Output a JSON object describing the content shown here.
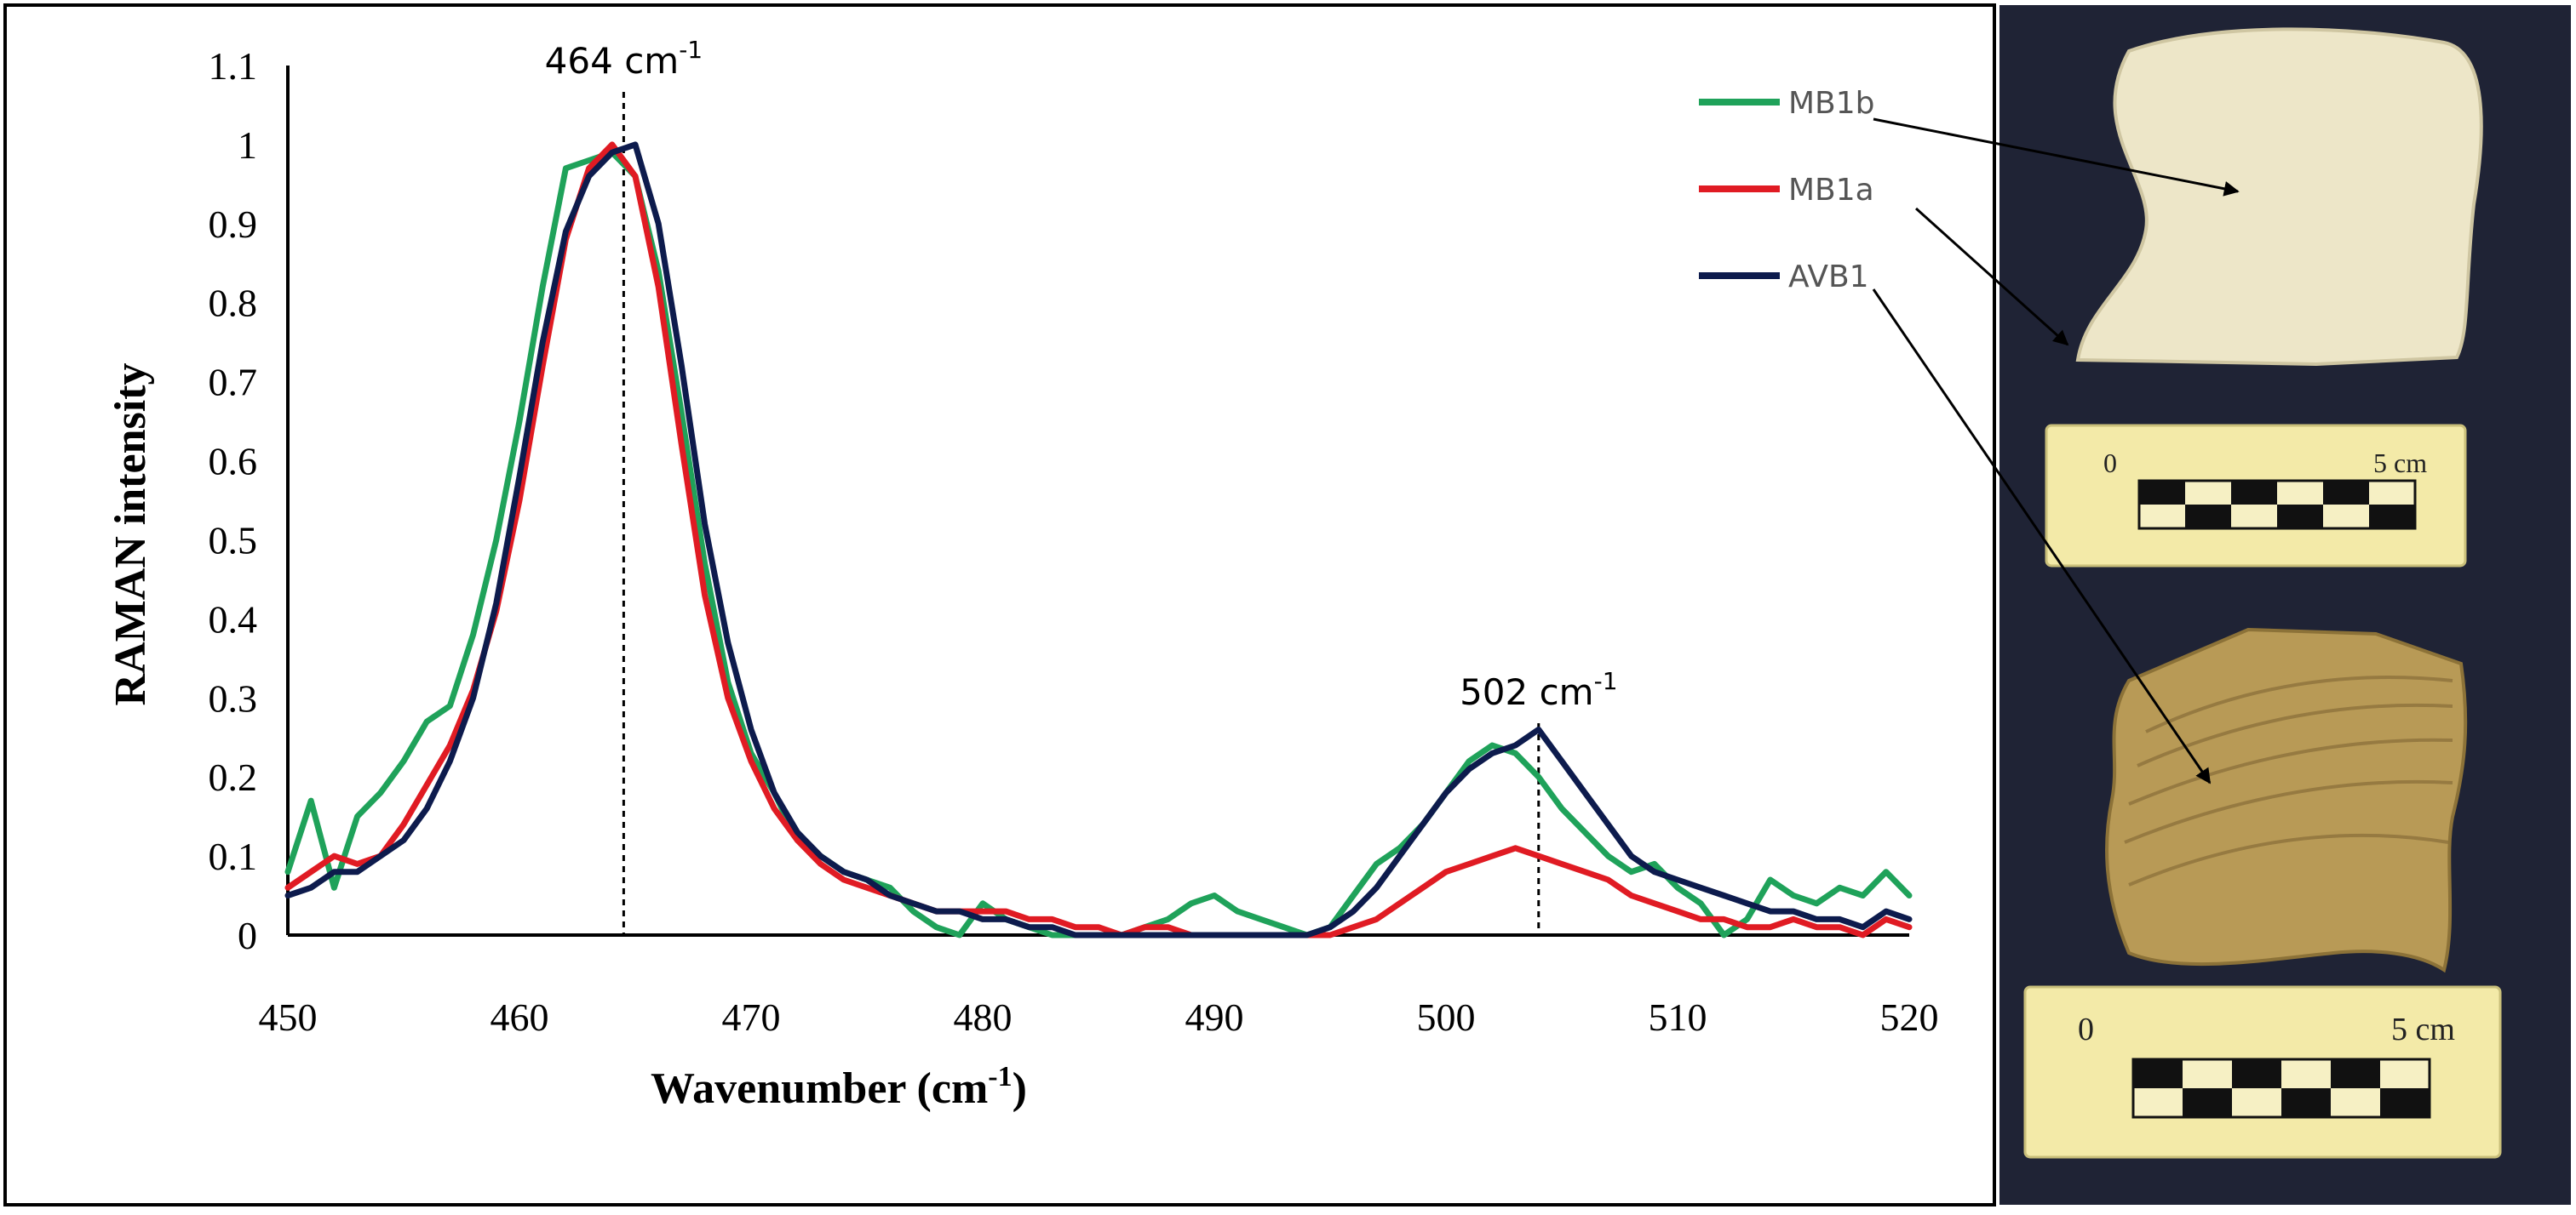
{
  "chart_data": {
    "type": "line",
    "title": "",
    "xlabel": "Wavenumber (cm",
    "xlabel_sup": "-1",
    "xlabel_close": ")",
    "ylabel": "RAMAN  intensity",
    "xlim": [
      450,
      520
    ],
    "ylim": [
      0,
      1.1
    ],
    "xticks": [
      450,
      460,
      470,
      480,
      490,
      500,
      510,
      520
    ],
    "xtick_labels": [
      "450",
      "460",
      "470",
      "480",
      "490",
      "500",
      "510",
      "520"
    ],
    "yticks": [
      0,
      0.1,
      0.2,
      0.3,
      0.4,
      0.5,
      0.6,
      0.7,
      0.8,
      0.9,
      1,
      1.1
    ],
    "ytick_labels": [
      "0",
      "0.1",
      "0.2",
      "0.3",
      "0.4",
      "0.5",
      "0.6",
      "0.7",
      "0.8",
      "0.9",
      "1",
      "1.1"
    ],
    "grid": false,
    "legend_position": "top-right",
    "annotations": [
      {
        "x": 464.5,
        "y": 1.0,
        "label": "464 cm",
        "sup": "-1"
      },
      {
        "x": 504,
        "y": 0.26,
        "label": "502 cm",
        "sup": "-1"
      }
    ],
    "series": [
      {
        "name": "MB1b",
        "color": "#1fa25a",
        "x": [
          450,
          451,
          452,
          453,
          454,
          455,
          456,
          457,
          458,
          459,
          460,
          461,
          462,
          463,
          464,
          465,
          466,
          467,
          468,
          469,
          470,
          471,
          472,
          473,
          474,
          475,
          476,
          477,
          478,
          479,
          480,
          481,
          482,
          483,
          484,
          485,
          486,
          487,
          488,
          489,
          490,
          491,
          492,
          493,
          494,
          495,
          496,
          497,
          498,
          499,
          500,
          501,
          502,
          503,
          504,
          505,
          506,
          507,
          508,
          509,
          510,
          511,
          512,
          513,
          514,
          515,
          516,
          517,
          518,
          519,
          520
        ],
        "y": [
          0.08,
          0.17,
          0.06,
          0.15,
          0.18,
          0.22,
          0.27,
          0.29,
          0.38,
          0.5,
          0.65,
          0.82,
          0.97,
          0.98,
          0.99,
          0.96,
          0.84,
          0.66,
          0.47,
          0.32,
          0.23,
          0.18,
          0.12,
          0.1,
          0.08,
          0.07,
          0.06,
          0.03,
          0.01,
          0.0,
          0.04,
          0.02,
          0.01,
          0.0,
          0.0,
          0.0,
          0.0,
          0.01,
          0.02,
          0.04,
          0.05,
          0.03,
          0.02,
          0.01,
          0.0,
          0.01,
          0.05,
          0.09,
          0.11,
          0.14,
          0.18,
          0.22,
          0.24,
          0.23,
          0.2,
          0.16,
          0.13,
          0.1,
          0.08,
          0.09,
          0.06,
          0.04,
          0.0,
          0.02,
          0.07,
          0.05,
          0.04,
          0.06,
          0.05,
          0.08,
          0.05
        ]
      },
      {
        "name": "MB1a",
        "color": "#e01b23",
        "x": [
          450,
          451,
          452,
          453,
          454,
          455,
          456,
          457,
          458,
          459,
          460,
          461,
          462,
          463,
          464,
          465,
          466,
          467,
          468,
          469,
          470,
          471,
          472,
          473,
          474,
          475,
          476,
          477,
          478,
          479,
          480,
          481,
          482,
          483,
          484,
          485,
          486,
          487,
          488,
          489,
          490,
          491,
          492,
          493,
          494,
          495,
          496,
          497,
          498,
          499,
          500,
          501,
          502,
          503,
          504,
          505,
          506,
          507,
          508,
          509,
          510,
          511,
          512,
          513,
          514,
          515,
          516,
          517,
          518,
          519,
          520
        ],
        "y": [
          0.06,
          0.08,
          0.1,
          0.09,
          0.1,
          0.14,
          0.19,
          0.24,
          0.31,
          0.41,
          0.55,
          0.72,
          0.88,
          0.97,
          1.0,
          0.96,
          0.82,
          0.62,
          0.43,
          0.3,
          0.22,
          0.16,
          0.12,
          0.09,
          0.07,
          0.06,
          0.05,
          0.04,
          0.03,
          0.03,
          0.03,
          0.03,
          0.02,
          0.02,
          0.01,
          0.01,
          0.0,
          0.01,
          0.01,
          0.0,
          0.0,
          0.0,
          0.0,
          0.0,
          0.0,
          0.0,
          0.01,
          0.02,
          0.04,
          0.06,
          0.08,
          0.09,
          0.1,
          0.11,
          0.1,
          0.09,
          0.08,
          0.07,
          0.05,
          0.04,
          0.03,
          0.02,
          0.02,
          0.01,
          0.01,
          0.02,
          0.01,
          0.01,
          0.0,
          0.02,
          0.01
        ]
      },
      {
        "name": "AVB1",
        "color": "#0d1b4d",
        "x": [
          450,
          451,
          452,
          453,
          454,
          455,
          456,
          457,
          458,
          459,
          460,
          461,
          462,
          463,
          464,
          465,
          466,
          467,
          468,
          469,
          470,
          471,
          472,
          473,
          474,
          475,
          476,
          477,
          478,
          479,
          480,
          481,
          482,
          483,
          484,
          485,
          486,
          487,
          488,
          489,
          490,
          491,
          492,
          493,
          494,
          495,
          496,
          497,
          498,
          499,
          500,
          501,
          502,
          503,
          504,
          505,
          506,
          507,
          508,
          509,
          510,
          511,
          512,
          513,
          514,
          515,
          516,
          517,
          518,
          519,
          520
        ],
        "y": [
          0.05,
          0.06,
          0.08,
          0.08,
          0.1,
          0.12,
          0.16,
          0.22,
          0.3,
          0.42,
          0.58,
          0.75,
          0.89,
          0.96,
          0.99,
          1.0,
          0.9,
          0.72,
          0.52,
          0.37,
          0.26,
          0.18,
          0.13,
          0.1,
          0.08,
          0.07,
          0.05,
          0.04,
          0.03,
          0.03,
          0.02,
          0.02,
          0.01,
          0.01,
          0.0,
          0.0,
          0.0,
          0.0,
          0.0,
          0.0,
          0.0,
          0.0,
          0.0,
          0.0,
          0.0,
          0.01,
          0.03,
          0.06,
          0.1,
          0.14,
          0.18,
          0.21,
          0.23,
          0.24,
          0.26,
          0.22,
          0.18,
          0.14,
          0.1,
          0.08,
          0.07,
          0.06,
          0.05,
          0.04,
          0.03,
          0.03,
          0.02,
          0.02,
          0.01,
          0.03,
          0.02
        ]
      }
    ]
  },
  "photos": {
    "top_scale": {
      "zero": "0",
      "end": "5 cm"
    },
    "bottom_scale": {
      "zero": "0",
      "end": "5 cm"
    },
    "colors": {
      "background": "#1c2030",
      "sherd_top": "#ede6c8",
      "sherd_bottom": "#b89a56",
      "scale_card": "#f3eaa8"
    }
  }
}
